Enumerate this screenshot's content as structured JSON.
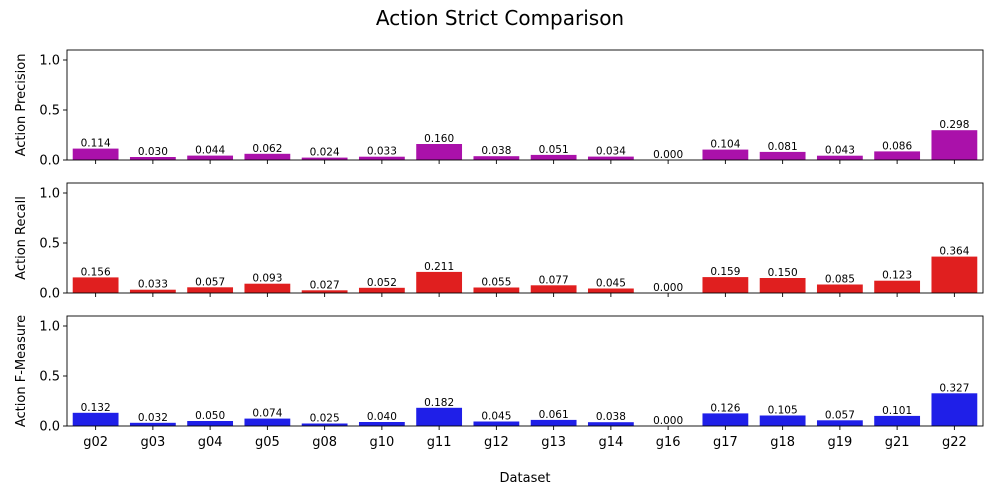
{
  "figure": {
    "title": "Action Strict Comparison",
    "xlabel": "Dataset"
  },
  "chart_data": [
    {
      "type": "bar",
      "ylabel": "Action Precision",
      "color": "#aa11aa",
      "ylim": [
        0,
        1.1
      ],
      "yticks": [
        "0.0",
        "0.5",
        "1.0"
      ],
      "categories": [
        "g02",
        "g03",
        "g04",
        "g05",
        "g08",
        "g10",
        "g11",
        "g12",
        "g13",
        "g14",
        "g16",
        "g17",
        "g18",
        "g19",
        "g21",
        "g22"
      ],
      "values": [
        0.114,
        0.03,
        0.044,
        0.062,
        0.024,
        0.033,
        0.16,
        0.038,
        0.051,
        0.034,
        0.0,
        0.104,
        0.081,
        0.043,
        0.086,
        0.298
      ],
      "labels": [
        "0.114",
        "0.030",
        "0.044",
        "0.062",
        "0.024",
        "0.033",
        "0.160",
        "0.038",
        "0.051",
        "0.034",
        "0.000",
        "0.104",
        "0.081",
        "0.043",
        "0.086",
        "0.298"
      ]
    },
    {
      "type": "bar",
      "ylabel": "Action Recall",
      "color": "#e01f1f",
      "ylim": [
        0,
        1.1
      ],
      "yticks": [
        "0.0",
        "0.5",
        "1.0"
      ],
      "categories": [
        "g02",
        "g03",
        "g04",
        "g05",
        "g08",
        "g10",
        "g11",
        "g12",
        "g13",
        "g14",
        "g16",
        "g17",
        "g18",
        "g19",
        "g21",
        "g22"
      ],
      "values": [
        0.156,
        0.033,
        0.057,
        0.093,
        0.027,
        0.052,
        0.211,
        0.055,
        0.077,
        0.045,
        0.0,
        0.159,
        0.15,
        0.085,
        0.123,
        0.364
      ],
      "labels": [
        "0.156",
        "0.033",
        "0.057",
        "0.093",
        "0.027",
        "0.052",
        "0.211",
        "0.055",
        "0.077",
        "0.045",
        "0.000",
        "0.159",
        "0.150",
        "0.085",
        "0.123",
        "0.364"
      ]
    },
    {
      "type": "bar",
      "ylabel": "Action F-Measure",
      "color": "#1f1fe8",
      "ylim": [
        0,
        1.1
      ],
      "yticks": [
        "0.0",
        "0.5",
        "1.0"
      ],
      "categories": [
        "g02",
        "g03",
        "g04",
        "g05",
        "g08",
        "g10",
        "g11",
        "g12",
        "g13",
        "g14",
        "g16",
        "g17",
        "g18",
        "g19",
        "g21",
        "g22"
      ],
      "values": [
        0.132,
        0.032,
        0.05,
        0.074,
        0.025,
        0.04,
        0.182,
        0.045,
        0.061,
        0.038,
        0.0,
        0.126,
        0.105,
        0.057,
        0.101,
        0.327
      ],
      "labels": [
        "0.132",
        "0.032",
        "0.050",
        "0.074",
        "0.025",
        "0.040",
        "0.182",
        "0.045",
        "0.061",
        "0.038",
        "0.000",
        "0.126",
        "0.105",
        "0.057",
        "0.101",
        "0.327"
      ]
    }
  ]
}
